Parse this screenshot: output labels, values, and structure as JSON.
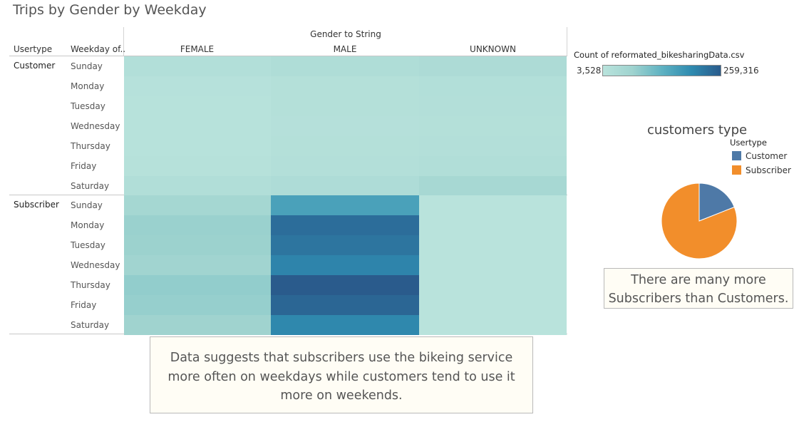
{
  "title": "Trips by Gender by Weekday",
  "headers": {
    "column_group": "Gender to String",
    "usertype": "Usertype",
    "weekday": "Weekday of.."
  },
  "chart_data": [
    {
      "type": "heatmap",
      "title": "Trips by Gender by Weekday",
      "column_field": "Gender to String",
      "columns": [
        "FEMALE",
        "MALE",
        "UNKNOWN"
      ],
      "row_fields": [
        "Usertype",
        "Weekday of.."
      ],
      "groups": [
        {
          "name": "Customer",
          "rows": [
            "Sunday",
            "Monday",
            "Tuesday",
            "Wednesday",
            "Thursday",
            "Friday",
            "Saturday"
          ],
          "values": [
            [
              20000,
              28000,
              34000
            ],
            [
              10000,
              17000,
              20000
            ],
            [
              9000,
              16000,
              19000
            ],
            [
              8000,
              14000,
              16000
            ],
            [
              9000,
              16000,
              19000
            ],
            [
              11000,
              18000,
              23000
            ],
            [
              22000,
              30000,
              47000
            ]
          ]
        },
        {
          "name": "Subscriber",
          "rows": [
            "Sunday",
            "Monday",
            "Tuesday",
            "Wednesday",
            "Thursday",
            "Friday",
            "Saturday"
          ],
          "values": [
            [
              52000,
              160000,
              3600
            ],
            [
              72000,
              235000,
              3528
            ],
            [
              70000,
              225000,
              3700
            ],
            [
              62000,
              205000,
              3800
            ],
            [
              80000,
              259316,
              3900
            ],
            [
              76000,
              245000,
              3700
            ],
            [
              66000,
              200000,
              3600
            ]
          ]
        }
      ],
      "legend": {
        "title": "Count of reformated_bikesharingData.csv",
        "min_label": "3,528",
        "max_label": "259,316",
        "min": 3528,
        "max": 259316,
        "placement": "top-right"
      }
    },
    {
      "type": "pie",
      "title": "customers type",
      "legend_title": "Usertype",
      "categories": [
        "Customer",
        "Subscriber"
      ],
      "values": [
        19,
        81
      ],
      "colors": [
        "#4e79a7",
        "#f28e2b"
      ],
      "legend_placement": "right"
    }
  ],
  "notes": {
    "pie_note": "There are many more Subscribers than Customers.",
    "main_note": "Data suggests that subscribers use the bikeing service more often on weekdays while customers tend to use it more on weekends."
  },
  "colors": {
    "scale": [
      "#b9e3dc",
      "#9fd3cf",
      "#5fb2c2",
      "#2f8bb0",
      "#2a5b8c"
    ]
  }
}
